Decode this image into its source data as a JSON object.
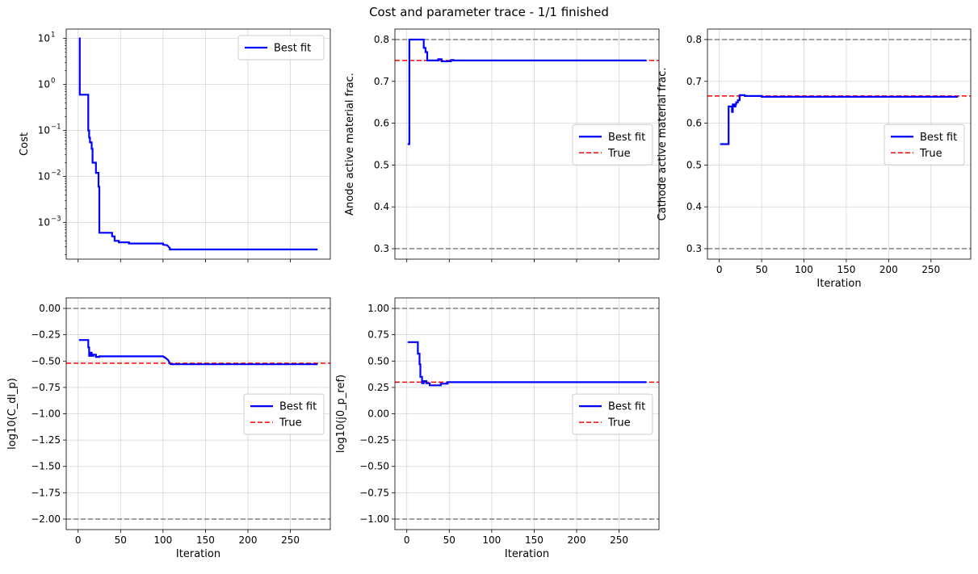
{
  "figure": {
    "title": "Cost and parameter trace - 1/1 finished"
  },
  "chart_data": [
    {
      "type": "line",
      "ylabel": "Cost",
      "xlabel": "",
      "yscale": "log",
      "ylim": [
        0.00016,
        16
      ],
      "xlim": [
        -14,
        297
      ],
      "xticks": [
        0,
        50,
        100,
        150,
        200,
        250
      ],
      "show_xticklabels": false,
      "yticks": [
        0.001,
        0.01,
        0.1,
        1,
        10
      ],
      "yticklabels": [
        [
          "10",
          "-3"
        ],
        [
          "10",
          "-2"
        ],
        [
          "10",
          "-1"
        ],
        [
          "10",
          "0"
        ],
        [
          "10",
          "1"
        ]
      ],
      "grid": true,
      "legend": {
        "position": "upper right",
        "entries": [
          "Best fit"
        ]
      },
      "series": [
        {
          "name": "Best fit",
          "color": "#0000ff",
          "style": "solid",
          "x": [
            1,
            2,
            2,
            12,
            12,
            13,
            13,
            14,
            14,
            16,
            16,
            17,
            17,
            19,
            19,
            21,
            21,
            22,
            22,
            24,
            24,
            25,
            25,
            40,
            40,
            43,
            43,
            48,
            48,
            60,
            60,
            100,
            100,
            105,
            107,
            108,
            108,
            282
          ],
          "y": [
            10,
            10,
            0.6,
            0.6,
            0.1,
            0.1,
            0.07,
            0.07,
            0.055,
            0.055,
            0.04,
            0.04,
            0.02,
            0.02,
            0.02,
            0.02,
            0.012,
            0.012,
            0.012,
            0.012,
            0.006,
            0.006,
            0.0006,
            0.0006,
            0.0005,
            0.0005,
            0.0004,
            0.0004,
            0.00037,
            0.00037,
            0.00035,
            0.00035,
            0.00033,
            0.00032,
            0.00029,
            0.00028,
            0.00026,
            0.00026
          ]
        }
      ]
    },
    {
      "type": "line",
      "ylabel": "Anode active material frac.",
      "xlabel": "",
      "ylim": [
        0.275,
        0.825
      ],
      "xlim": [
        -14,
        297
      ],
      "xticks": [
        0,
        50,
        100,
        150,
        200,
        250
      ],
      "show_xticklabels": false,
      "yticks": [
        0.3,
        0.4,
        0.5,
        0.6,
        0.7,
        0.8
      ],
      "yticklabels": [
        "0.3",
        "0.4",
        "0.5",
        "0.6",
        "0.7",
        "0.8"
      ],
      "grid": true,
      "hlines": [
        {
          "y": 0.8,
          "color": "#808080",
          "style": "dashed"
        },
        {
          "y": 0.3,
          "color": "#808080",
          "style": "dashed"
        },
        {
          "y": 0.75,
          "color": "#ff0000",
          "style": "dashed"
        }
      ],
      "legend": {
        "position": "center right",
        "entries": [
          "Best fit",
          "True"
        ]
      },
      "series": [
        {
          "name": "Best fit",
          "color": "#0000ff",
          "style": "solid",
          "x": [
            1,
            3,
            3,
            10,
            10,
            20,
            20,
            22,
            22,
            24,
            24,
            37,
            37,
            41,
            41,
            52,
            52,
            55,
            55,
            282
          ],
          "y": [
            0.55,
            0.55,
            0.8,
            0.8,
            0.8,
            0.8,
            0.78,
            0.78,
            0.77,
            0.77,
            0.75,
            0.75,
            0.753,
            0.753,
            0.748,
            0.748,
            0.751,
            0.751,
            0.75,
            0.75
          ]
        }
      ],
      "true_value": 0.75
    },
    {
      "type": "line",
      "ylabel": "Cathode active material frac.",
      "xlabel": "Iteration",
      "ylim": [
        0.275,
        0.825
      ],
      "xlim": [
        -14,
        297
      ],
      "xticks": [
        0,
        50,
        100,
        150,
        200,
        250
      ],
      "xticklabels": [
        "0",
        "50",
        "100",
        "150",
        "200",
        "250"
      ],
      "show_xticklabels": true,
      "yticks": [
        0.3,
        0.4,
        0.5,
        0.6,
        0.7,
        0.8
      ],
      "yticklabels": [
        "0.3",
        "0.4",
        "0.5",
        "0.6",
        "0.7",
        "0.8"
      ],
      "grid": true,
      "hlines": [
        {
          "y": 0.8,
          "color": "#808080",
          "style": "dashed"
        },
        {
          "y": 0.3,
          "color": "#808080",
          "style": "dashed"
        },
        {
          "y": 0.665,
          "color": "#ff0000",
          "style": "dashed"
        }
      ],
      "legend": {
        "position": "center right",
        "entries": [
          "Best fit",
          "True"
        ]
      },
      "series": [
        {
          "name": "Best fit",
          "color": "#0000ff",
          "style": "solid",
          "x": [
            1,
            11,
            11,
            15,
            15,
            16,
            16,
            17,
            17,
            19,
            19,
            20,
            20,
            22,
            22,
            24,
            24,
            30,
            30,
            50,
            50,
            282
          ],
          "y": [
            0.55,
            0.55,
            0.64,
            0.64,
            0.627,
            0.627,
            0.645,
            0.645,
            0.64,
            0.64,
            0.645,
            0.645,
            0.65,
            0.65,
            0.655,
            0.655,
            0.667,
            0.667,
            0.665,
            0.665,
            0.663,
            0.663
          ]
        }
      ],
      "true_value": 0.665
    },
    {
      "type": "line",
      "ylabel": "log10(C_dl_p)",
      "xlabel": "Iteration",
      "ylim": [
        -2.1,
        0.1
      ],
      "xlim": [
        -14,
        297
      ],
      "xticks": [
        0,
        50,
        100,
        150,
        200,
        250
      ],
      "xticklabels": [
        "0",
        "50",
        "100",
        "150",
        "200",
        "250"
      ],
      "show_xticklabels": true,
      "yticks": [
        -2.0,
        -1.75,
        -1.5,
        -1.25,
        -1.0,
        -0.75,
        -0.5,
        -0.25,
        0.0
      ],
      "yticklabels": [
        "−2.00",
        "−1.75",
        "−1.50",
        "−1.25",
        "−1.00",
        "−0.75",
        "−0.50",
        "−0.25",
        "0.00"
      ],
      "grid": true,
      "hlines": [
        {
          "y": 0.0,
          "color": "#808080",
          "style": "dashed"
        },
        {
          "y": -2.0,
          "color": "#808080",
          "style": "dashed"
        },
        {
          "y": -0.52,
          "color": "#ff0000",
          "style": "dashed"
        }
      ],
      "legend": {
        "position": "center right",
        "entries": [
          "Best fit",
          "True"
        ]
      },
      "series": [
        {
          "name": "Best fit",
          "color": "#0000ff",
          "style": "solid",
          "x": [
            1,
            12,
            12,
            13,
            13,
            14,
            14,
            16,
            16,
            18,
            18,
            21,
            21,
            25,
            25,
            100,
            103,
            106,
            108,
            109,
            109,
            282
          ],
          "y": [
            -0.3,
            -0.3,
            -0.37,
            -0.37,
            -0.45,
            -0.45,
            -0.42,
            -0.42,
            -0.45,
            -0.45,
            -0.44,
            -0.44,
            -0.46,
            -0.46,
            -0.455,
            -0.455,
            -0.47,
            -0.49,
            -0.52,
            -0.53,
            -0.53,
            -0.53
          ]
        }
      ],
      "true_value": -0.52
    },
    {
      "type": "line",
      "ylabel": "log10(j0_p_ref)",
      "xlabel": "Iteration",
      "ylim": [
        -1.1,
        1.1
      ],
      "xlim": [
        -14,
        297
      ],
      "xticks": [
        0,
        50,
        100,
        150,
        200,
        250
      ],
      "xticklabels": [
        "0",
        "50",
        "100",
        "150",
        "200",
        "250"
      ],
      "show_xticklabels": true,
      "yticks": [
        -1.0,
        -0.75,
        -0.5,
        -0.25,
        0.0,
        0.25,
        0.5,
        0.75,
        1.0
      ],
      "yticklabels": [
        "−1.00",
        "−0.75",
        "−0.50",
        "−0.25",
        "0.00",
        "0.25",
        "0.50",
        "0.75",
        "1.00"
      ],
      "grid": true,
      "hlines": [
        {
          "y": 1.0,
          "color": "#808080",
          "style": "dashed"
        },
        {
          "y": -1.0,
          "color": "#808080",
          "style": "dashed"
        },
        {
          "y": 0.3,
          "color": "#ff0000",
          "style": "dashed"
        }
      ],
      "legend": {
        "position": "center right",
        "entries": [
          "Best fit",
          "True"
        ]
      },
      "series": [
        {
          "name": "Best fit",
          "color": "#0000ff",
          "style": "solid",
          "x": [
            1,
            13,
            13,
            15,
            15,
            16,
            16,
            18,
            18,
            20,
            20,
            23,
            23,
            27,
            27,
            40,
            40,
            48,
            48,
            282
          ],
          "y": [
            0.68,
            0.68,
            0.57,
            0.57,
            0.47,
            0.47,
            0.35,
            0.35,
            0.29,
            0.29,
            0.31,
            0.31,
            0.29,
            0.29,
            0.27,
            0.27,
            0.285,
            0.285,
            0.3,
            0.3
          ]
        }
      ],
      "true_value": 0.3
    }
  ]
}
